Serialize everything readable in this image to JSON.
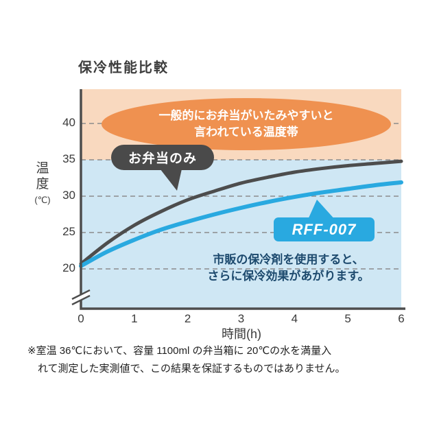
{
  "title": "保冷性能比較",
  "chart_data": {
    "type": "line",
    "title": "保冷性能比較",
    "xlabel": "時間(h)",
    "ylabel": "温度(℃)",
    "x_ticks": [
      0,
      1,
      2,
      3,
      4,
      5,
      6
    ],
    "y_ticks": [
      40,
      35,
      30,
      25,
      20
    ],
    "ylim": [
      20,
      42
    ],
    "axis_break_below": 20,
    "grid": "dashed-horizontal",
    "x": [
      0,
      0.5,
      1,
      1.5,
      2,
      2.5,
      3,
      3.5,
      4,
      4.5,
      5,
      5.5,
      6
    ],
    "series": [
      {
        "name": "お弁当のみ",
        "color": "#4d4d4d",
        "width": 5,
        "values": [
          20.7,
          23.6,
          26.0,
          27.9,
          29.5,
          30.7,
          31.8,
          32.6,
          33.3,
          33.8,
          34.2,
          34.5,
          34.8
        ]
      },
      {
        "name": "RFF-007",
        "color": "#29a9e0",
        "width": 6,
        "values": [
          20.4,
          22.4,
          24.0,
          25.4,
          26.5,
          27.5,
          28.4,
          29.2,
          29.9,
          30.5,
          31.0,
          31.5,
          31.9
        ]
      }
    ],
    "zones": [
      {
        "label": "一般的にお弁当がいたみやすいと言われている温度帯",
        "from": 35,
        "to": 42,
        "color": "#f9d9bf"
      },
      {
        "label": "",
        "from": 20,
        "to": 35,
        "color": "#cfe7f4"
      }
    ]
  },
  "labels": {
    "zone_line1": "一般的にお弁当がいたみやすいと",
    "zone_line2": "言われている温度帯",
    "bento_callout": "お弁当のみ",
    "product_badge": "RFF-007",
    "note_line1": "市販の保冷剤を使用すると、",
    "note_line2": "さらに保冷効果があがります。",
    "ylabel_main": "温度",
    "ylabel_unit": "(℃)",
    "xlabel": "時間(h)"
  },
  "colors": {
    "danger_zone": "#f9d9bf",
    "cool_zone": "#cfe7f4",
    "ellipse": "#ef9150",
    "dark": "#4d4d4d",
    "blue": "#29a9e0",
    "note_text": "#1d4a6e"
  },
  "footnote": {
    "line1": "※室温 36℃において、容量 1100ml の弁当箱に 20℃の水を満量入",
    "line2": "れて測定した実測値で、この結果を保証するものではありません。"
  }
}
